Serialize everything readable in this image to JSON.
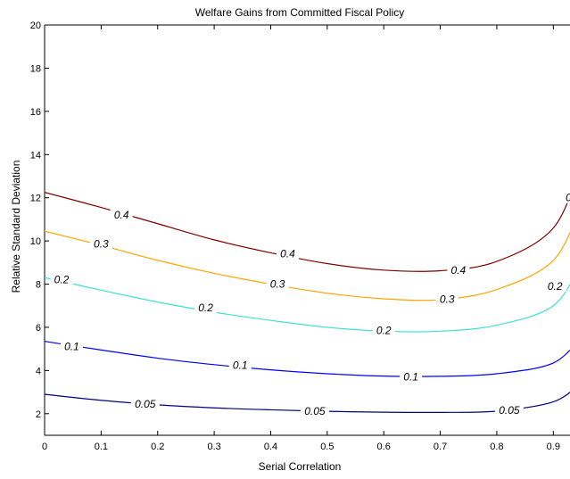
{
  "chart_data": {
    "type": "line",
    "title": "Welfare Gains from Committed Fiscal Policy",
    "xlabel": "Serial Correlation",
    "ylabel": "Relative Standard Deviation",
    "xlim": [
      0,
      0.95
    ],
    "ylim": [
      1,
      20
    ],
    "xticks": [
      "0",
      "0.1",
      "0.2",
      "0.3",
      "0.4",
      "0.5",
      "0.6",
      "0.7",
      "0.8",
      "0.9"
    ],
    "yticks": [
      "2",
      "4",
      "6",
      "8",
      "10",
      "12",
      "14",
      "16",
      "18",
      "20"
    ],
    "grid": false,
    "series": [
      {
        "name": "0.05",
        "color": "#000080",
        "points": [
          [
            0,
            2.9
          ],
          [
            0.1,
            2.62
          ],
          [
            0.2,
            2.41
          ],
          [
            0.3,
            2.27
          ],
          [
            0.4,
            2.18
          ],
          [
            0.5,
            2.11
          ],
          [
            0.6,
            2.07
          ],
          [
            0.7,
            2.06
          ],
          [
            0.8,
            2.12
          ],
          [
            0.9,
            2.55
          ],
          [
            0.95,
            3.45
          ]
        ],
        "labels": [
          [
            0.178,
            2.45
          ],
          [
            0.478,
            2.12
          ],
          [
            0.822,
            2.15
          ]
        ]
      },
      {
        "name": "0.1",
        "color": "#0000ff",
        "points": [
          [
            0,
            5.35
          ],
          [
            0.1,
            4.95
          ],
          [
            0.2,
            4.57
          ],
          [
            0.3,
            4.27
          ],
          [
            0.4,
            4.03
          ],
          [
            0.5,
            3.85
          ],
          [
            0.6,
            3.74
          ],
          [
            0.7,
            3.73
          ],
          [
            0.8,
            3.85
          ],
          [
            0.9,
            4.35
          ],
          [
            0.95,
            5.6
          ]
        ],
        "labels": [
          [
            0.048,
            5.1
          ],
          [
            0.346,
            4.25
          ],
          [
            0.648,
            3.7
          ],
          [
            0.942,
            5.2
          ]
        ]
      },
      {
        "name": "0.2",
        "color": "#40e0d0",
        "points": [
          [
            0,
            8.3
          ],
          [
            0.1,
            7.72
          ],
          [
            0.2,
            7.17
          ],
          [
            0.3,
            6.7
          ],
          [
            0.4,
            6.32
          ],
          [
            0.5,
            6.0
          ],
          [
            0.6,
            5.82
          ],
          [
            0.7,
            5.82
          ],
          [
            0.8,
            6.1
          ],
          [
            0.9,
            7.0
          ],
          [
            0.95,
            9.0
          ]
        ],
        "labels": [
          [
            0.03,
            8.2
          ],
          [
            0.285,
            6.9
          ],
          [
            0.6,
            5.85
          ],
          [
            0.903,
            7.9
          ]
        ]
      },
      {
        "name": "0.3",
        "color": "#ffa500",
        "points": [
          [
            0,
            10.45
          ],
          [
            0.1,
            9.8
          ],
          [
            0.2,
            9.1
          ],
          [
            0.3,
            8.5
          ],
          [
            0.4,
            8.0
          ],
          [
            0.5,
            7.58
          ],
          [
            0.6,
            7.32
          ],
          [
            0.7,
            7.28
          ],
          [
            0.8,
            7.75
          ],
          [
            0.9,
            9.1
          ],
          [
            0.95,
            11.7
          ]
        ],
        "labels": [
          [
            0.1,
            9.85
          ],
          [
            0.412,
            8.0
          ],
          [
            0.712,
            7.3
          ],
          [
            0.935,
            12.0
          ]
        ]
      },
      {
        "name": "0.4",
        "color": "#800000",
        "points": [
          [
            0,
            12.25
          ],
          [
            0.1,
            11.55
          ],
          [
            0.2,
            10.8
          ],
          [
            0.3,
            10.05
          ],
          [
            0.4,
            9.45
          ],
          [
            0.5,
            8.95
          ],
          [
            0.6,
            8.65
          ],
          [
            0.7,
            8.62
          ],
          [
            0.8,
            9.05
          ],
          [
            0.9,
            10.6
          ],
          [
            0.95,
            13.6
          ]
        ],
        "labels": [
          [
            0.136,
            11.2
          ],
          [
            0.43,
            9.4
          ],
          [
            0.732,
            8.65
          ],
          [
            0.945,
            13.8
          ]
        ]
      }
    ]
  }
}
